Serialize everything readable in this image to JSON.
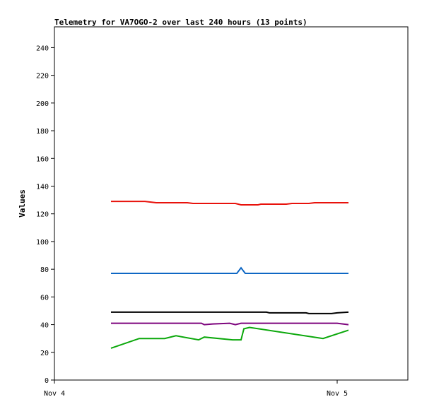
{
  "chart_data": {
    "type": "line",
    "title": "Telemetry for VA7OGO-2 over last 240 hours (13 points)",
    "xlabel": "",
    "ylabel": "Values",
    "x_range_days": [
      0,
      1.25
    ],
    "ylim": [
      0,
      255
    ],
    "yticks": [
      0,
      20,
      40,
      60,
      80,
      100,
      120,
      140,
      160,
      180,
      200,
      220,
      240
    ],
    "xticks": [
      {
        "label": "Nov 4",
        "day": 0
      },
      {
        "label": "Nov 5",
        "day": 1
      }
    ],
    "grid": false,
    "legend": "none",
    "series": [
      {
        "color": "#e8120c",
        "points": [
          [
            0.2,
            129
          ],
          [
            0.32,
            129
          ],
          [
            0.36,
            128
          ],
          [
            0.47,
            128
          ],
          [
            0.49,
            127.5
          ],
          [
            0.64,
            127.5
          ],
          [
            0.66,
            126.5
          ],
          [
            0.72,
            126.5
          ],
          [
            0.73,
            127
          ],
          [
            0.82,
            127
          ],
          [
            0.84,
            127.5
          ],
          [
            0.9,
            127.5
          ],
          [
            0.92,
            128
          ],
          [
            1.04,
            128
          ]
        ]
      },
      {
        "color": "#0e67c4",
        "points": [
          [
            0.2,
            77
          ],
          [
            0.645,
            77
          ],
          [
            0.66,
            81
          ],
          [
            0.675,
            77
          ],
          [
            1.04,
            77
          ]
        ]
      },
      {
        "color": "#000000",
        "points": [
          [
            0.2,
            49
          ],
          [
            0.75,
            49
          ],
          [
            0.76,
            48.5
          ],
          [
            0.89,
            48.5
          ],
          [
            0.9,
            48
          ],
          [
            0.98,
            48
          ],
          [
            1.0,
            48.5
          ],
          [
            1.04,
            49
          ]
        ]
      },
      {
        "color": "#7d047d",
        "points": [
          [
            0.2,
            41
          ],
          [
            0.52,
            41
          ],
          [
            0.53,
            40
          ],
          [
            0.56,
            40.5
          ],
          [
            0.62,
            41
          ],
          [
            0.64,
            40
          ],
          [
            0.66,
            41
          ],
          [
            1.0,
            41
          ],
          [
            1.04,
            40
          ]
        ]
      },
      {
        "color": "#0ba80b",
        "points": [
          [
            0.2,
            23
          ],
          [
            0.3,
            30
          ],
          [
            0.39,
            30
          ],
          [
            0.43,
            32
          ],
          [
            0.51,
            29
          ],
          [
            0.53,
            31
          ],
          [
            0.63,
            29
          ],
          [
            0.66,
            29
          ],
          [
            0.67,
            37
          ],
          [
            0.69,
            38
          ],
          [
            0.95,
            30
          ],
          [
            1.04,
            36
          ]
        ]
      }
    ]
  }
}
